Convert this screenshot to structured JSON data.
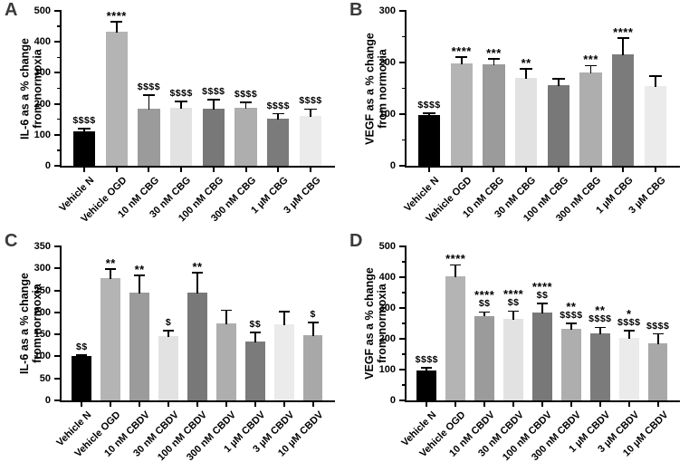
{
  "figure": {
    "background": "#ffffff",
    "panel_letters": [
      "A",
      "B",
      "C",
      "D"
    ]
  },
  "colors": {
    "axis": "#000000",
    "text": "#000000",
    "panel_letter": "#3a3a3a",
    "palette_8bar": [
      "#000000",
      "#b4b4b4",
      "#9b9b9b",
      "#e2e2e2",
      "#787878",
      "#aeaeae",
      "#7b7b7b",
      "#ebebeb"
    ],
    "palette_9bar": [
      "#000000",
      "#b4b4b4",
      "#9b9b9b",
      "#e2e2e2",
      "#787878",
      "#aeaeae",
      "#7b7b7b",
      "#ebebeb",
      "#a8a8a8"
    ]
  },
  "chart_data": [
    {
      "panel": "A",
      "type": "bar",
      "title": "",
      "xlabel": "",
      "ylabel": "IL-6 as a % change from normoxia",
      "ylabel_lines": [
        "IL-6 as a % change",
        "from normoxia"
      ],
      "ylim": [
        0,
        500
      ],
      "ytick_step": 100,
      "minor_ticks": true,
      "grid": false,
      "legend": "none",
      "categories": [
        "Vehicle N",
        "Vehicle OGD",
        "10 nM CBG",
        "30 nM CBG",
        "100 nM CBG",
        "300 nM CBG",
        "1 µM CBG",
        "3 µM CBG"
      ],
      "values": [
        110,
        432,
        183,
        186,
        184,
        188,
        151,
        160
      ],
      "errors_up": [
        11,
        32,
        46,
        21,
        29,
        17,
        17,
        23
      ],
      "annotations": [
        [
          "$$$$"
        ],
        [
          "****"
        ],
        [
          "$$$$"
        ],
        [
          "$$$$"
        ],
        [
          "$$$$"
        ],
        [
          "$$$$"
        ],
        [
          "$$$$"
        ],
        [
          "$$$$"
        ]
      ],
      "bar_colors": [
        "#000000",
        "#b4b4b4",
        "#9b9b9b",
        "#e2e2e2",
        "#787878",
        "#aeaeae",
        "#7b7b7b",
        "#ebebeb"
      ]
    },
    {
      "panel": "B",
      "type": "bar",
      "title": "",
      "xlabel": "",
      "ylabel": "VEGF as a % change from normoxia",
      "ylabel_lines": [
        "VEGF as a % change",
        "from normoxia"
      ],
      "ylim": [
        0,
        300
      ],
      "ytick_step": 100,
      "minor_ticks": true,
      "grid": false,
      "legend": "none",
      "categories": [
        "Vehicle N",
        "Vehicle OGD",
        "10 nM CBG",
        "30 nM CBG",
        "100 nM CBG",
        "300 nM CBG",
        "1 µM CBG",
        "3 µM CBG"
      ],
      "values": [
        98,
        198,
        196,
        171,
        156,
        180,
        216,
        155
      ],
      "errors_up": [
        4,
        12,
        11,
        17,
        12,
        14,
        32,
        19
      ],
      "annotations": [
        [
          "$$$$"
        ],
        [
          "****"
        ],
        [
          "***"
        ],
        [
          "**"
        ],
        [],
        [
          "***"
        ],
        [
          "****"
        ],
        []
      ],
      "bar_colors": [
        "#000000",
        "#b4b4b4",
        "#9b9b9b",
        "#e2e2e2",
        "#787878",
        "#aeaeae",
        "#7b7b7b",
        "#ebebeb"
      ]
    },
    {
      "panel": "C",
      "type": "bar",
      "title": "",
      "xlabel": "",
      "ylabel": "IL-6 as a % change from normoxia",
      "ylabel_lines": [
        "IL-6 as a % change",
        "from normoxia"
      ],
      "ylim": [
        0,
        350
      ],
      "ytick_step": 50,
      "minor_ticks": false,
      "grid": false,
      "legend": "none",
      "categories": [
        "Vehicle N",
        "Vehicle OGD",
        "10 nM CBDV",
        "30 nM CBDV",
        "100 nM CBDV",
        "300 nM CBDV",
        "1 µM CBDV",
        "3 µM CBDV",
        "10 µM CBDV"
      ],
      "values": [
        100,
        277,
        246,
        146,
        245,
        175,
        134,
        172,
        148
      ],
      "errors_up": [
        3,
        22,
        38,
        13,
        45,
        30,
        20,
        30,
        29
      ],
      "annotations": [
        [
          "$$"
        ],
        [
          "**"
        ],
        [
          "**"
        ],
        [
          "$"
        ],
        [
          "**"
        ],
        [],
        [
          "$$"
        ],
        [],
        [
          "$"
        ]
      ],
      "bar_colors": [
        "#000000",
        "#b4b4b4",
        "#9b9b9b",
        "#e2e2e2",
        "#787878",
        "#aeaeae",
        "#7b7b7b",
        "#ebebeb",
        "#a8a8a8"
      ]
    },
    {
      "panel": "D",
      "type": "bar",
      "title": "",
      "xlabel": "",
      "ylabel": "VEGF as a % change from normoxia",
      "ylabel_lines": [
        "VEGF as a % change",
        "from normoxia"
      ],
      "ylim": [
        0,
        500
      ],
      "ytick_step": 100,
      "minor_ticks": true,
      "grid": false,
      "legend": "none",
      "categories": [
        "Vehicle N",
        "Vehicle OGD",
        "10 nM CBDV",
        "30 nM CBDV",
        "100 nM CBDV",
        "300 nM CBDV",
        "1 µM CBDV",
        "3 µM CBDV",
        "10 µM CBDV"
      ],
      "values": [
        97,
        403,
        275,
        265,
        284,
        231,
        219,
        202,
        184
      ],
      "errors_up": [
        9,
        37,
        12,
        25,
        31,
        18,
        18,
        25,
        32
      ],
      "annotations": [
        [
          "$$$$"
        ],
        [
          "****"
        ],
        [
          "****",
          "$$"
        ],
        [
          "****",
          "$$"
        ],
        [
          "****",
          "$$"
        ],
        [
          "**",
          "$$$$"
        ],
        [
          "**",
          "$$$$"
        ],
        [
          "*",
          "$$$$"
        ],
        [
          "$$$$"
        ]
      ],
      "bar_colors": [
        "#000000",
        "#b4b4b4",
        "#9b9b9b",
        "#e2e2e2",
        "#787878",
        "#aeaeae",
        "#7b7b7b",
        "#ebebeb",
        "#a8a8a8"
      ]
    }
  ]
}
